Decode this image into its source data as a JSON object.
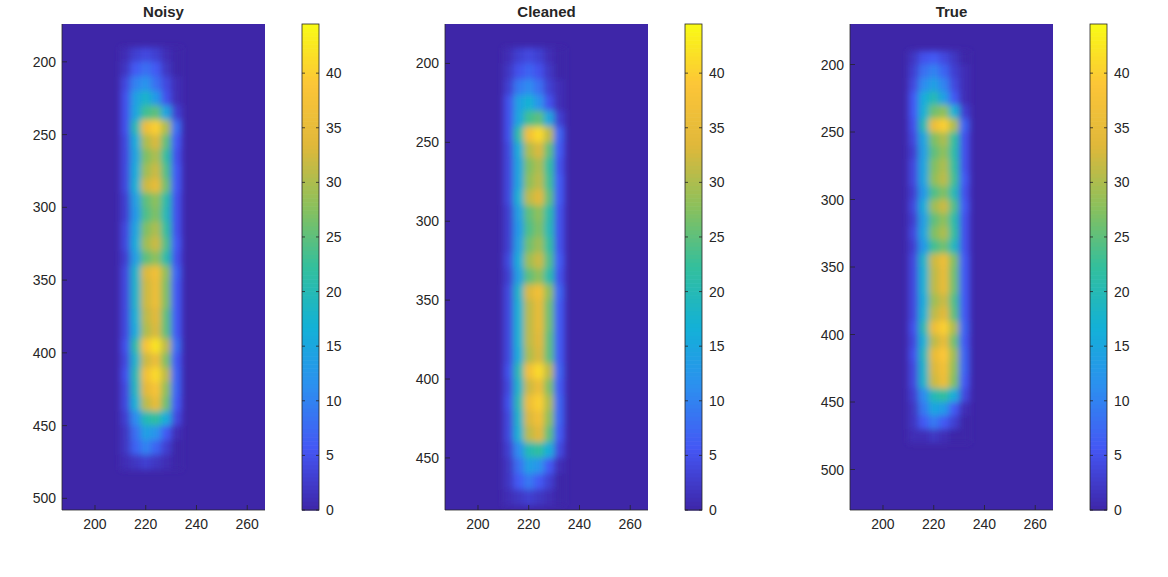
{
  "chart_data": [
    {
      "type": "heatmap",
      "title": "Noisy",
      "x": [
        212,
        216,
        220,
        224,
        228,
        232
      ],
      "y": [
        195,
        205,
        215,
        225,
        235,
        245,
        255,
        265,
        275,
        285,
        295,
        305,
        315,
        325,
        335,
        345,
        355,
        365,
        375,
        385,
        395,
        405,
        415,
        425,
        435,
        445,
        455,
        465,
        475
      ],
      "cells": [
        [
          1,
          3,
          4,
          3,
          1,
          0
        ],
        [
          2,
          6,
          8,
          6,
          2,
          0
        ],
        [
          4,
          10,
          12,
          8,
          4,
          1
        ],
        [
          5,
          14,
          18,
          13,
          5,
          1
        ],
        [
          5,
          15,
          23,
          25,
          15,
          3
        ],
        [
          5,
          20,
          36,
          40,
          30,
          8
        ],
        [
          4,
          16,
          30,
          33,
          25,
          6
        ],
        [
          4,
          15,
          27,
          30,
          22,
          5
        ],
        [
          4,
          16,
          29,
          32,
          24,
          6
        ],
        [
          4,
          17,
          32,
          35,
          26,
          6
        ],
        [
          3,
          14,
          25,
          28,
          21,
          5
        ],
        [
          3,
          13,
          24,
          27,
          20,
          5
        ],
        [
          4,
          15,
          27,
          30,
          22,
          5
        ],
        [
          4,
          16,
          29,
          32,
          24,
          6
        ],
        [
          3,
          14,
          25,
          28,
          21,
          5
        ],
        [
          4,
          18,
          33,
          37,
          28,
          7
        ],
        [
          4,
          18,
          32,
          36,
          27,
          6
        ],
        [
          4,
          18,
          32,
          36,
          27,
          6
        ],
        [
          4,
          17,
          31,
          34,
          25,
          6
        ],
        [
          4,
          16,
          30,
          33,
          25,
          6
        ],
        [
          5,
          21,
          38,
          42,
          31,
          8
        ],
        [
          4,
          18,
          32,
          36,
          27,
          6
        ],
        [
          5,
          20,
          37,
          41,
          31,
          7
        ],
        [
          4,
          19,
          34,
          38,
          28,
          7
        ],
        [
          4,
          17,
          31,
          35,
          26,
          6
        ],
        [
          3,
          11,
          20,
          22,
          16,
          4
        ],
        [
          2,
          8,
          14,
          12,
          6,
          1
        ],
        [
          2,
          7,
          10,
          7,
          3,
          0
        ],
        [
          1,
          2,
          3,
          2,
          1,
          0
        ]
      ],
      "xlim": [
        187,
        267
      ],
      "xticks": [
        200,
        220,
        240,
        260
      ],
      "ylim": [
        174,
        508
      ],
      "yticks": [
        200,
        250,
        300,
        350,
        400,
        450,
        500
      ],
      "colorbar_range": [
        0,
        44.5
      ],
      "colorbar_ticks": [
        0,
        5,
        10,
        15,
        20,
        25,
        30,
        35,
        40
      ]
    },
    {
      "type": "heatmap",
      "title": "Cleaned",
      "x": [
        212,
        216,
        220,
        224,
        228,
        232
      ],
      "y": [
        195,
        205,
        215,
        225,
        235,
        245,
        255,
        265,
        275,
        285,
        295,
        305,
        315,
        325,
        335,
        345,
        355,
        365,
        375,
        385,
        395,
        405,
        415,
        425,
        435,
        445,
        455,
        465,
        475
      ],
      "cells": [
        [
          1,
          3,
          4,
          3,
          1,
          0
        ],
        [
          2,
          5,
          7,
          5,
          2,
          0
        ],
        [
          3,
          9,
          11,
          8,
          3,
          1
        ],
        [
          5,
          14,
          17,
          12,
          5,
          1
        ],
        [
          5,
          15,
          23,
          25,
          15,
          3
        ],
        [
          5,
          21,
          37,
          41,
          31,
          7
        ],
        [
          4,
          16,
          30,
          33,
          25,
          6
        ],
        [
          4,
          15,
          27,
          30,
          22,
          5
        ],
        [
          4,
          15,
          28,
          31,
          23,
          6
        ],
        [
          4,
          17,
          31,
          34,
          25,
          6
        ],
        [
          3,
          14,
          25,
          28,
          21,
          5
        ],
        [
          3,
          13,
          24,
          27,
          20,
          5
        ],
        [
          3,
          14,
          26,
          29,
          22,
          5
        ],
        [
          4,
          16,
          29,
          32,
          24,
          6
        ],
        [
          3,
          14,
          25,
          28,
          21,
          5
        ],
        [
          4,
          18,
          33,
          37,
          28,
          7
        ],
        [
          4,
          17,
          31,
          35,
          26,
          6
        ],
        [
          4,
          17,
          31,
          35,
          26,
          6
        ],
        [
          4,
          17,
          31,
          34,
          25,
          6
        ],
        [
          4,
          16,
          30,
          33,
          25,
          6
        ],
        [
          5,
          20,
          37,
          41,
          31,
          7
        ],
        [
          4,
          18,
          32,
          36,
          27,
          6
        ],
        [
          5,
          20,
          36,
          40,
          30,
          7
        ],
        [
          4,
          18,
          33,
          37,
          28,
          7
        ],
        [
          4,
          17,
          31,
          34,
          25,
          6
        ],
        [
          3,
          11,
          20,
          22,
          16,
          4
        ],
        [
          2,
          8,
          14,
          12,
          6,
          1
        ],
        [
          2,
          6,
          9,
          6,
          3,
          0
        ],
        [
          1,
          2,
          3,
          2,
          1,
          0
        ]
      ],
      "xlim": [
        187,
        267
      ],
      "xticks": [
        200,
        220,
        240,
        260
      ],
      "ylim": [
        175,
        483
      ],
      "yticks": [
        200,
        250,
        300,
        350,
        400,
        450
      ],
      "colorbar_range": [
        0,
        44.5
      ],
      "colorbar_ticks": [
        0,
        5,
        10,
        15,
        20,
        25,
        30,
        35,
        40
      ]
    },
    {
      "type": "heatmap",
      "title": "True",
      "x": [
        212,
        216,
        220,
        224,
        228,
        232
      ],
      "y": [
        195,
        205,
        215,
        225,
        235,
        245,
        255,
        265,
        275,
        285,
        295,
        305,
        315,
        325,
        335,
        345,
        355,
        365,
        375,
        385,
        395,
        405,
        415,
        425,
        435,
        445,
        455,
        465,
        475
      ],
      "cells": [
        [
          2,
          5,
          6,
          4,
          2,
          0
        ],
        [
          3,
          8,
          10,
          7,
          3,
          1
        ],
        [
          4,
          11,
          14,
          10,
          4,
          1
        ],
        [
          6,
          16,
          20,
          14,
          6,
          1
        ],
        [
          6,
          17,
          26,
          28,
          17,
          3
        ],
        [
          5,
          20,
          36,
          40,
          30,
          7
        ],
        [
          4,
          15,
          27,
          30,
          22,
          5
        ],
        [
          3,
          14,
          25,
          28,
          21,
          5
        ],
        [
          4,
          15,
          27,
          30,
          22,
          5
        ],
        [
          4,
          15,
          28,
          31,
          23,
          6
        ],
        [
          3,
          13,
          24,
          27,
          20,
          5
        ],
        [
          4,
          16,
          29,
          32,
          24,
          6
        ],
        [
          3,
          14,
          25,
          28,
          21,
          5
        ],
        [
          4,
          15,
          27,
          30,
          22,
          5
        ],
        [
          3,
          13,
          23,
          26,
          19,
          5
        ],
        [
          4,
          18,
          32,
          36,
          27,
          6
        ],
        [
          4,
          17,
          31,
          35,
          26,
          6
        ],
        [
          4,
          17,
          31,
          35,
          26,
          6
        ],
        [
          4,
          16,
          29,
          32,
          24,
          6
        ],
        [
          4,
          17,
          31,
          34,
          25,
          6
        ],
        [
          5,
          20,
          36,
          40,
          30,
          7
        ],
        [
          4,
          17,
          31,
          35,
          26,
          6
        ],
        [
          5,
          19,
          35,
          39,
          29,
          7
        ],
        [
          4,
          18,
          33,
          37,
          28,
          7
        ],
        [
          4,
          18,
          32,
          36,
          27,
          6
        ],
        [
          3,
          11,
          20,
          22,
          16,
          4
        ],
        [
          2,
          9,
          15,
          13,
          6,
          1
        ],
        [
          2,
          6,
          9,
          6,
          3,
          0
        ],
        [
          1,
          1,
          2,
          1,
          0,
          0
        ]
      ],
      "xlim": [
        187,
        267
      ],
      "xticks": [
        200,
        220,
        240,
        260
      ],
      "ylim": [
        170,
        530
      ],
      "yticks": [
        200,
        250,
        300,
        350,
        400,
        450,
        500
      ],
      "colorbar_range": [
        0,
        44.5
      ],
      "colorbar_ticks": [
        0,
        5,
        10,
        15,
        20,
        25,
        30,
        35,
        40
      ]
    }
  ]
}
